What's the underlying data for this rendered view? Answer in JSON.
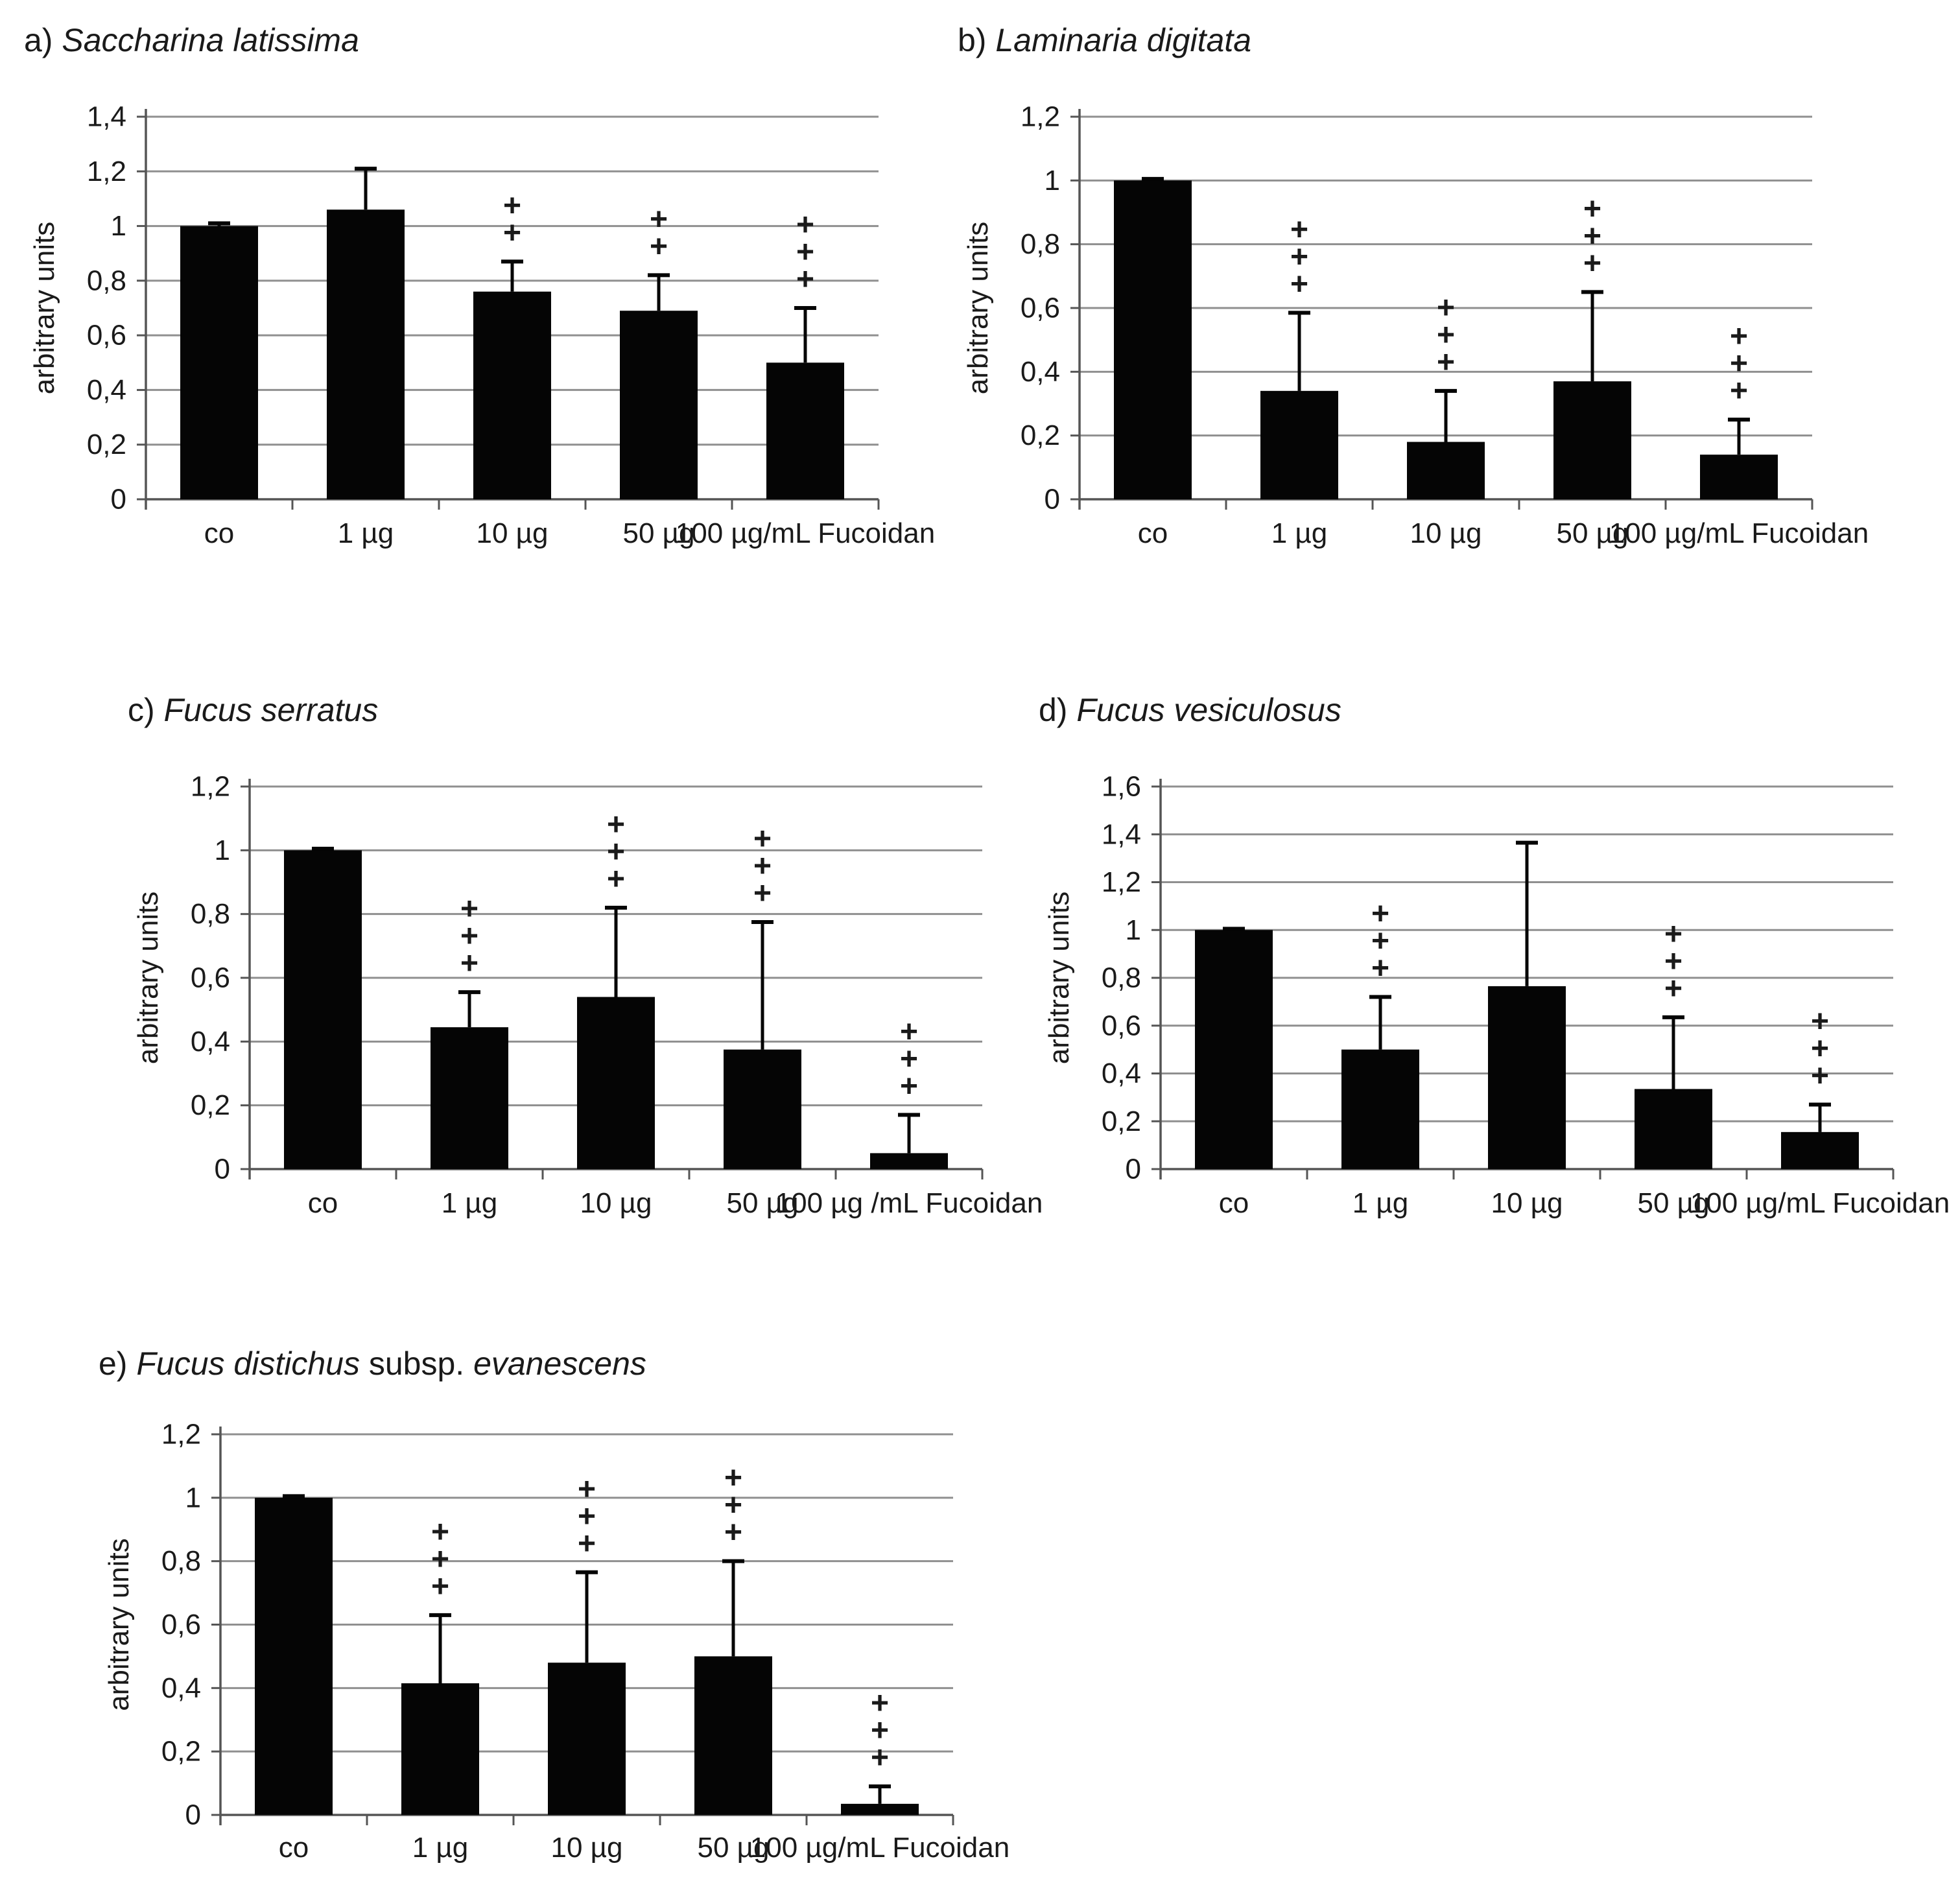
{
  "page": {
    "background": "#ffffff",
    "figure_description": "Five bar charts (a-e) of fucoidan treatments in arbitrary units"
  },
  "styles": {
    "bar_color": "#050505",
    "grid_color": "#8f8f8f",
    "axis_color": "#555555",
    "text_color": "#1a1a1a",
    "plus_symbol": "+"
  },
  "chart_data": [
    {
      "id": "a",
      "type": "bar",
      "title_parts": [
        {
          "text": "a) ",
          "italic": false
        },
        {
          "text": "Saccharina latissima",
          "italic": true
        }
      ],
      "ylabel": "arbitrary units",
      "xlabel": "",
      "ylim": [
        0,
        1.4
      ],
      "ytick_step": 0.2,
      "ytick_labels": [
        "0",
        "0,2",
        "0,4",
        "0,6",
        "0,8",
        "1",
        "1,2",
        "1,4"
      ],
      "grid": true,
      "legend_position": "none",
      "categories": [
        "co",
        "1 µg",
        "10 µg",
        "50 µg",
        "100 µg/mL Fucoidan"
      ],
      "values": [
        1.0,
        1.06,
        0.76,
        0.69,
        0.5
      ],
      "error_up": [
        0.01,
        0.15,
        0.11,
        0.13,
        0.2
      ],
      "plus_marks": [
        0,
        0,
        2,
        2,
        3
      ]
    },
    {
      "id": "b",
      "type": "bar",
      "title_parts": [
        {
          "text": "b) ",
          "italic": false
        },
        {
          "text": "Laminaria digitata",
          "italic": true
        }
      ],
      "ylabel": "arbitrary units",
      "xlabel": "",
      "ylim": [
        0,
        1.2
      ],
      "ytick_step": 0.2,
      "ytick_labels": [
        "0",
        "0,2",
        "0,4",
        "0,6",
        "0,8",
        "1",
        "1,2"
      ],
      "grid": true,
      "legend_position": "none",
      "categories": [
        "co",
        "1 µg",
        "10 µg",
        "50 µg",
        "100 µg/mL Fucoidan"
      ],
      "values": [
        1.0,
        0.34,
        0.18,
        0.37,
        0.14
      ],
      "error_up": [
        0.005,
        0.245,
        0.16,
        0.28,
        0.11
      ],
      "plus_marks": [
        0,
        3,
        3,
        3,
        3
      ]
    },
    {
      "id": "c",
      "type": "bar",
      "title_parts": [
        {
          "text": "c) ",
          "italic": false
        },
        {
          "text": "Fucus serratus",
          "italic": true
        }
      ],
      "ylabel": "arbitrary units",
      "xlabel": "",
      "ylim": [
        0,
        1.2
      ],
      "ytick_step": 0.2,
      "ytick_labels": [
        "0",
        "0,2",
        "0,4",
        "0,6",
        "0,8",
        "1",
        "1,2"
      ],
      "grid": true,
      "legend_position": "none",
      "categories": [
        "co",
        "1 µg",
        "10 µg",
        "50 µg",
        "100 µg /mL Fucoidan"
      ],
      "values": [
        1.0,
        0.445,
        0.54,
        0.375,
        0.05
      ],
      "error_up": [
        0.005,
        0.11,
        0.28,
        0.4,
        0.12
      ],
      "plus_marks": [
        0,
        3,
        3,
        3,
        3
      ]
    },
    {
      "id": "d",
      "type": "bar",
      "title_parts": [
        {
          "text": "d) ",
          "italic": false
        },
        {
          "text": "Fucus vesiculosus",
          "italic": true
        }
      ],
      "ylabel": "arbitrary units",
      "xlabel": "",
      "ylim": [
        0,
        1.6
      ],
      "ytick_step": 0.2,
      "ytick_labels": [
        "0",
        "0,2",
        "0,4",
        "0,6",
        "0,8",
        "1",
        "1,2",
        "1,4",
        "1,6"
      ],
      "grid": true,
      "legend_position": "none",
      "categories": [
        "co",
        "1 µg",
        "10 µg",
        "50 µg",
        "100 µg/mL Fucoidan"
      ],
      "values": [
        1.0,
        0.5,
        0.765,
        0.335,
        0.155
      ],
      "error_up": [
        0.005,
        0.22,
        0.6,
        0.3,
        0.115
      ],
      "plus_marks": [
        0,
        3,
        0,
        3,
        3
      ]
    },
    {
      "id": "e",
      "type": "bar",
      "title_parts": [
        {
          "text": "e) ",
          "italic": false
        },
        {
          "text": "Fucus distichus",
          "italic": true
        },
        {
          "text": " subsp. ",
          "italic": false
        },
        {
          "text": "evanescens",
          "italic": true
        }
      ],
      "ylabel": "arbitrary units",
      "xlabel": "",
      "ylim": [
        0,
        1.2
      ],
      "ytick_step": 0.2,
      "ytick_labels": [
        "0",
        "0,2",
        "0,4",
        "0,6",
        "0,8",
        "1",
        "1,2"
      ],
      "grid": true,
      "legend_position": "none",
      "categories": [
        "co",
        "1 µg",
        "10 µg",
        "50 µg",
        "100 µg/mL Fucoidan"
      ],
      "values": [
        1.0,
        0.415,
        0.48,
        0.5,
        0.035
      ],
      "error_up": [
        0.005,
        0.215,
        0.285,
        0.3,
        0.055
      ],
      "plus_marks": [
        0,
        3,
        3,
        3,
        3
      ]
    }
  ]
}
